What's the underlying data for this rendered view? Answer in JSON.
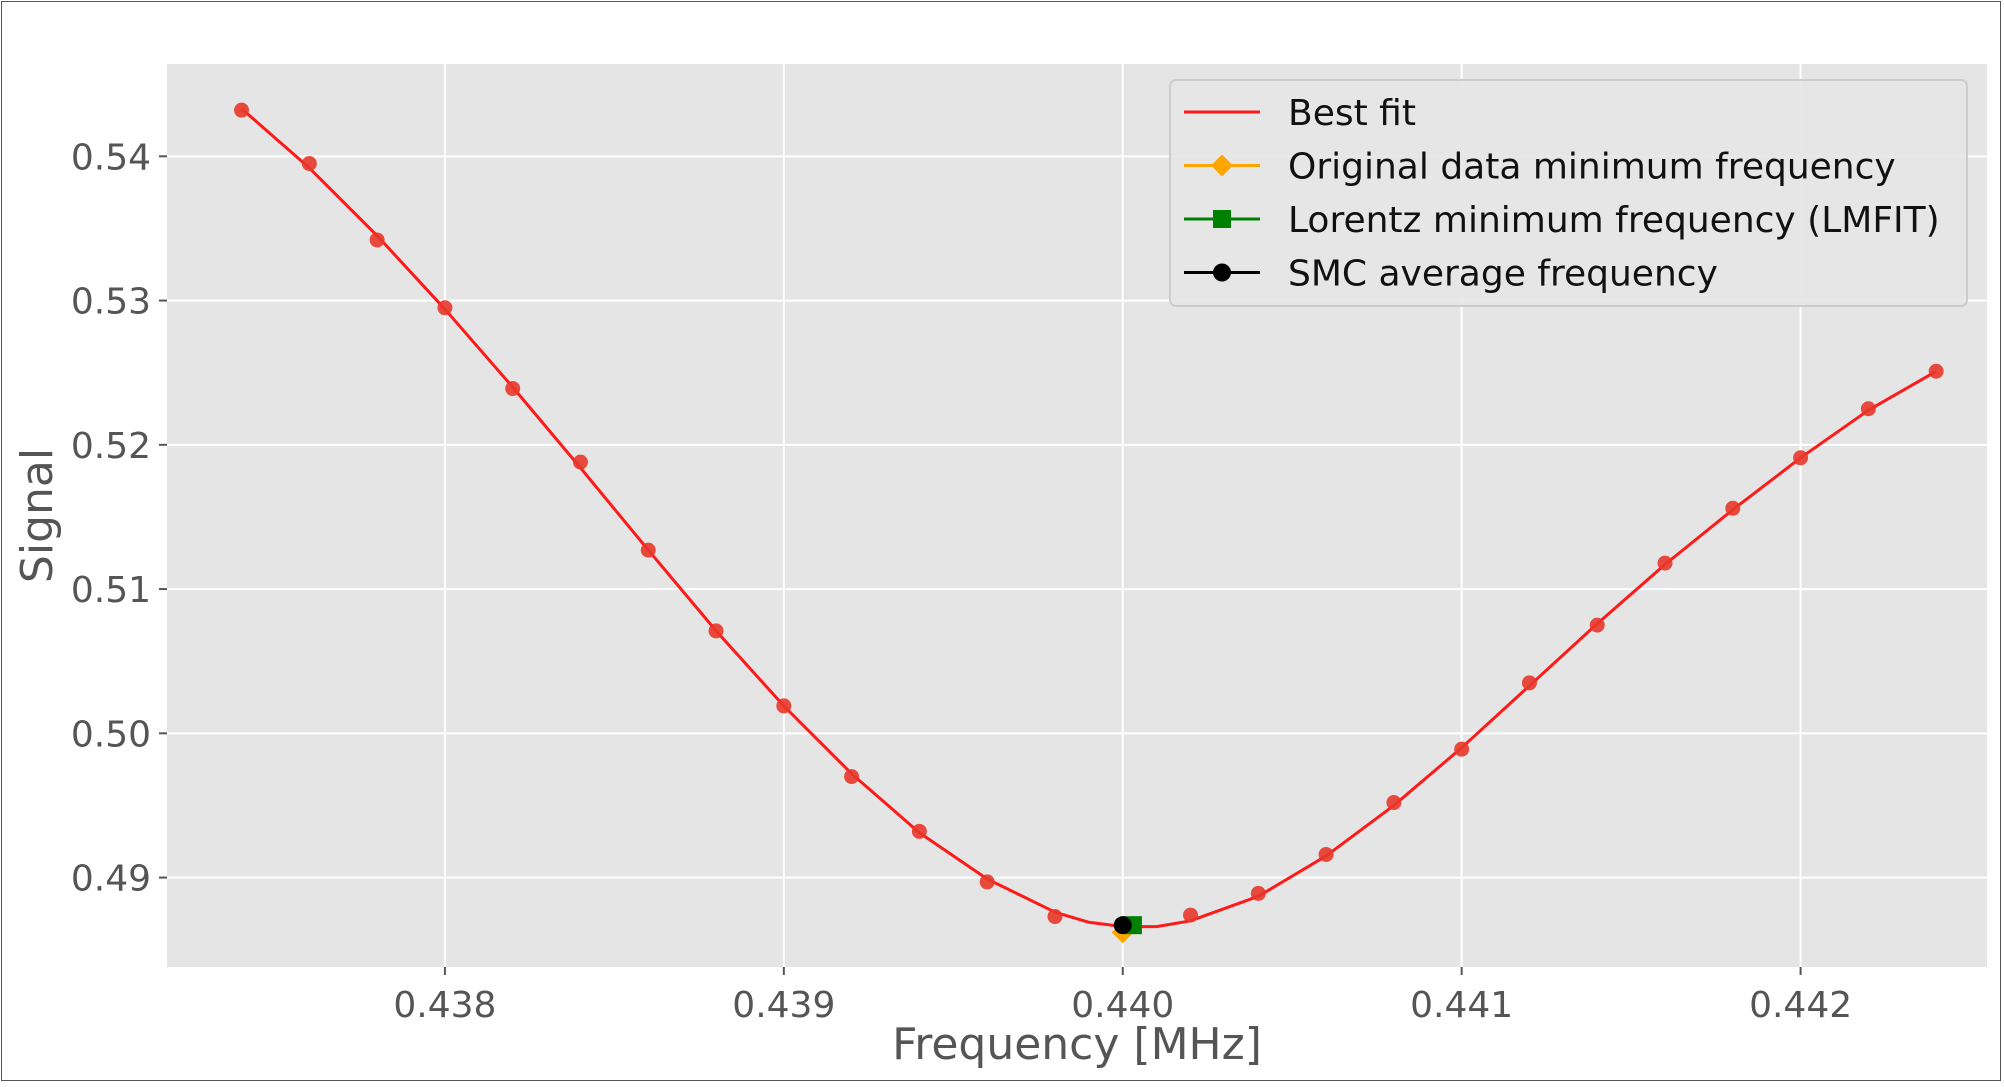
{
  "chart_data": {
    "type": "line",
    "title": "",
    "xlabel": "Frequency [MHz]",
    "ylabel": "Signal",
    "xlim": [
      0.43718,
      0.44255
    ],
    "ylim": [
      0.4838,
      0.5464
    ],
    "x_ticks": [
      "0.438",
      "0.439",
      "0.440",
      "0.441",
      "0.442"
    ],
    "y_ticks": [
      "0.49",
      "0.50",
      "0.51",
      "0.52",
      "0.53",
      "0.54"
    ],
    "grid": true,
    "legend_position": "top-right",
    "colors": {
      "background": "#e5e5e5",
      "fit_line": "#ff1a1a",
      "data_points": "#e8372a",
      "original_min": "#ffa500",
      "lorentz_min": "#008000",
      "smc_avg": "#000000"
    },
    "series": [
      {
        "name": "data",
        "kind": "scatter",
        "x": [
          0.4374,
          0.4376,
          0.4378,
          0.438,
          0.4382,
          0.4384,
          0.4386,
          0.4388,
          0.439,
          0.4392,
          0.4394,
          0.4396,
          0.4398,
          0.44,
          0.4402,
          0.4404,
          0.4406,
          0.4408,
          0.441,
          0.4412,
          0.4414,
          0.4416,
          0.4418,
          0.442,
          0.4422,
          0.4424
        ],
        "y": [
          0.5432,
          0.5395,
          0.5342,
          0.5295,
          0.5239,
          0.5188,
          0.5127,
          0.5071,
          0.5019,
          0.497,
          0.4932,
          0.4897,
          0.4873,
          0.4866,
          0.4874,
          0.4889,
          0.4916,
          0.4952,
          0.4989,
          0.5035,
          0.5075,
          0.5118,
          0.5156,
          0.5191,
          0.5225,
          0.5251
        ]
      },
      {
        "name": "Best fit",
        "kind": "line",
        "x": [
          0.4374,
          0.4376,
          0.4378,
          0.438,
          0.4382,
          0.4384,
          0.4386,
          0.4388,
          0.439,
          0.4392,
          0.4394,
          0.4396,
          0.4398,
          0.4399,
          0.44,
          0.4401,
          0.4402,
          0.4404,
          0.4406,
          0.4408,
          0.441,
          0.4412,
          0.4414,
          0.4416,
          0.4418,
          0.442,
          0.4422,
          0.4424
        ],
        "y": [
          0.5433,
          0.5392,
          0.5345,
          0.5294,
          0.524,
          0.5184,
          0.5127,
          0.5071,
          0.5019,
          0.4972,
          0.4931,
          0.4899,
          0.4876,
          0.4869,
          0.4866,
          0.4866,
          0.487,
          0.4887,
          0.4915,
          0.495,
          0.499,
          0.5033,
          0.5076,
          0.5117,
          0.5155,
          0.5191,
          0.5224,
          0.5251
        ]
      },
      {
        "name": "Original data minimum frequency",
        "kind": "marker",
        "marker": "diamond",
        "x": [
          0.44
        ],
        "y": [
          0.4862
        ]
      },
      {
        "name": "Lorentz minimum frequency (LMFIT)",
        "kind": "marker",
        "marker": "square",
        "x": [
          0.44003
        ],
        "y": [
          0.4867
        ]
      },
      {
        "name": "SMC average frequency",
        "kind": "marker",
        "marker": "circle",
        "x": [
          0.44
        ],
        "y": [
          0.4867
        ]
      }
    ],
    "legend": [
      {
        "label": "Best fit",
        "marker": "line",
        "color": "#ff1a1a"
      },
      {
        "label": "Original data minimum frequency",
        "marker": "diamond",
        "color": "#ffa500"
      },
      {
        "label": "Lorentz minimum frequency (LMFIT)",
        "marker": "square",
        "color": "#008000"
      },
      {
        "label": "SMC average frequency",
        "marker": "circle",
        "color": "#000000"
      }
    ]
  }
}
